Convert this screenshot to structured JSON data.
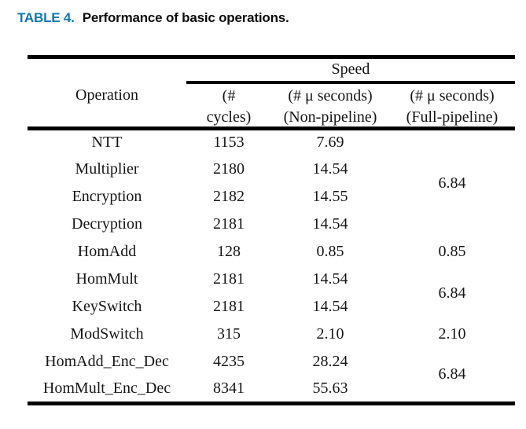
{
  "caption": {
    "label": "TABLE 4.",
    "text": "Performance of basic operations."
  },
  "colors": {
    "caption_label": "#0f78b4",
    "body_text": "#161616",
    "rule": "#000000"
  },
  "table": {
    "col1_header": "Operation",
    "group_header": "Speed",
    "columns": [
      {
        "line1": "(#",
        "line2": "cycles)"
      },
      {
        "line1": "(# μ seconds)",
        "line2": "(Non-pipeline)"
      },
      {
        "line1": "(# μ seconds)",
        "line2": "(Full-pipeline)"
      }
    ],
    "rows": [
      {
        "operation": "NTT",
        "cycles": "1153",
        "non_pipeline": "7.69",
        "full_pipeline": "",
        "fp_type": "cell"
      },
      {
        "operation": "Multiplier",
        "cycles": "2180",
        "non_pipeline": "14.54",
        "full_pipeline": "6.84",
        "fp_type": "span2"
      },
      {
        "operation": "Encryption",
        "cycles": "2182",
        "non_pipeline": "14.55",
        "full_pipeline": "",
        "fp_type": "none"
      },
      {
        "operation": "Decryption",
        "cycles": "2181",
        "non_pipeline": "14.54",
        "full_pipeline": "",
        "fp_type": "cell"
      },
      {
        "operation": "HomAdd",
        "cycles": "128",
        "non_pipeline": "0.85",
        "full_pipeline": "0.85",
        "fp_type": "cell"
      },
      {
        "operation": "HomMult",
        "cycles": "2181",
        "non_pipeline": "14.54",
        "full_pipeline": "6.84",
        "fp_type": "span2"
      },
      {
        "operation": "KeySwitch",
        "cycles": "2181",
        "non_pipeline": "14.54",
        "full_pipeline": "",
        "fp_type": "none"
      },
      {
        "operation": "ModSwitch",
        "cycles": "315",
        "non_pipeline": "2.10",
        "full_pipeline": "2.10",
        "fp_type": "cell"
      },
      {
        "operation": "HomAdd_Enc_Dec",
        "cycles": "4235",
        "non_pipeline": "28.24",
        "full_pipeline": "6.84",
        "fp_type": "span2"
      },
      {
        "operation": "HomMult_Enc_Dec",
        "cycles": "8341",
        "non_pipeline": "55.63",
        "full_pipeline": "",
        "fp_type": "none"
      }
    ]
  }
}
